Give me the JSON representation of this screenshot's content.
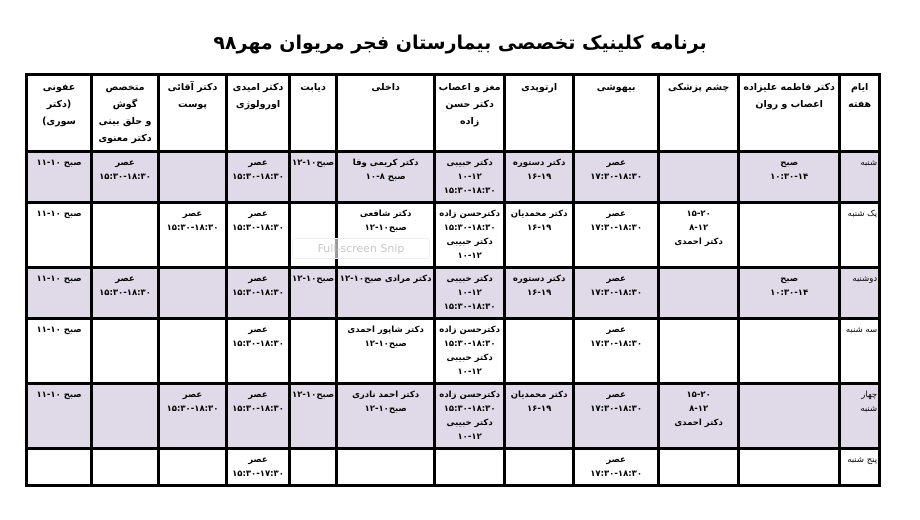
{
  "title": "برنامه کلینیک تخصصی بیمارستان فجر مریوان مهر۹۸",
  "overlay_text": "Full-screen Snip",
  "colors": {
    "shaded_row": "#e0dae8",
    "border": "#000000"
  },
  "columns": [
    [
      "ایام هفته"
    ],
    [
      "دکتر فاطمه علیزاده",
      "اعصاب و روان"
    ],
    [
      "چشم پزشکی"
    ],
    [
      "بیهوشی"
    ],
    [
      "ارتوپدی"
    ],
    [
      "مغز و اعصاب",
      "دکتر حسن زاده"
    ],
    [
      "داخلی"
    ],
    [
      "دیابت"
    ],
    [
      "دکتر امیدی",
      "اورولوژی"
    ],
    [
      "دکتر آقائی",
      "پوست"
    ],
    [
      "متخصص گوش",
      "و حلق بینی",
      "دکتر معنوی"
    ],
    [
      "عفونی",
      "(دکتر سوری)"
    ]
  ],
  "rows": [
    {
      "day": "شنبه",
      "shaded": true,
      "cells": [
        [
          "صبح",
          "۱۰:۳۰-۱۴"
        ],
        [],
        [
          "عصر",
          "۱۷:۳۰-۱۸:۳۰"
        ],
        [
          "دکتر دستوره",
          "۱۶-۱۹"
        ],
        [
          "دکتر حبیبی",
          "۱۰-۱۲",
          "۱۵:۳۰-۱۸:۳۰"
        ],
        [
          "دکتر کریمی وفا",
          "صبح ۸-۱۰"
        ],
        [
          "صبح۱۰-۱۲"
        ],
        [
          "عصر",
          "۱۵:۳۰-۱۸:۳۰"
        ],
        [],
        [
          "عصر",
          "۱۵:۳۰-۱۸:۳۰"
        ],
        [
          "صبح ۱۰-۱۱"
        ]
      ]
    },
    {
      "day": "یک شنبه",
      "shaded": false,
      "cells": [
        [],
        [
          "۱۵-۲۰",
          "۸-۱۲",
          "دکتر احمدی"
        ],
        [
          "عصر",
          "۱۷:۳۰-۱۸:۳۰"
        ],
        [
          "دکتر محمدیان",
          "۱۶-۱۹"
        ],
        [
          "دکترحسن زاده",
          "۱۵:۳۰-۱۸:۳۰",
          "دکتر حبیبی",
          "۱۰-۱۲"
        ],
        [
          "دکتر شافعی",
          "صبح۱۰-۱۲"
        ],
        [],
        [
          "عصر",
          "۱۵:۳۰-۱۸:۳۰"
        ],
        [
          "عصر",
          "۱۵:۳۰-۱۸:۳۰"
        ],
        [],
        [
          "صبح ۱۰-۱۱"
        ]
      ]
    },
    {
      "day": "دوشنبه",
      "shaded": true,
      "cells": [
        [
          "صبح",
          "۱۰:۳۰-۱۴"
        ],
        [],
        [
          "عصر",
          "۱۷:۳۰-۱۸:۳۰"
        ],
        [
          "دکتر دستوره",
          "۱۶-۱۹"
        ],
        [
          "دکتر حبیبی",
          "۱۰-۱۲",
          "۱۵:۳۰-۱۸:۳۰"
        ],
        [
          "دکتر مرادی صبح۱۰-۱۲"
        ],
        [
          "صبح۱۰-۱۲"
        ],
        [
          "عصر",
          "۱۵:۳۰-۱۸:۳۰"
        ],
        [],
        [
          "عصر",
          "۱۵:۳۰-۱۸:۳۰"
        ],
        [
          "صبح ۱۰-۱۱"
        ]
      ]
    },
    {
      "day": "سه شنبه",
      "shaded": false,
      "cells": [
        [],
        [],
        [
          "عصر",
          "۱۷:۳۰-۱۸:۳۰"
        ],
        [],
        [
          "دکترحسن زاده",
          "۱۵:۳۰-۱۸:۳۰",
          "دکتر حبیبی",
          "۱۰-۱۲"
        ],
        [
          "دکتر شاپور احمدی",
          "صبح۱۰-۱۲"
        ],
        [],
        [
          "عصر",
          "۱۵:۳۰-۱۸:۳۰"
        ],
        [],
        [],
        [
          "صبح ۱۰-۱۱"
        ]
      ]
    },
    {
      "day": "چهار شنبه",
      "shaded": true,
      "cells": [
        [],
        [
          "۱۵-۲۰",
          "۸-۱۲",
          "دکتر احمدی"
        ],
        [
          "عصر",
          "۱۷:۳۰-۱۸:۳۰"
        ],
        [
          "دکتر محمدیان",
          "۱۶-۱۹"
        ],
        [
          "دکترحسن زاده",
          "۱۵:۳۰-۱۸:۳۰",
          "دکتر حبیبی",
          "۱۰-۱۲"
        ],
        [
          "دکتر احمد نادری",
          "صبح۱۰-۱۲"
        ],
        [
          "صبح۱۰-۱۲"
        ],
        [
          "عصر",
          "۱۵:۳۰-۱۸:۳۰"
        ],
        [
          "عصر",
          "۱۵:۳۰-۱۸:۳۰"
        ],
        [],
        [
          "صبح ۱۰-۱۱"
        ]
      ]
    },
    {
      "day": "پنج شنبه",
      "shaded": false,
      "cells": [
        [],
        [],
        [
          "عصر",
          "۱۷:۳۰-۱۸:۳۰"
        ],
        [],
        [],
        [],
        [],
        [
          "عصر",
          "۱۵:۳۰-۱۷:۳۰"
        ],
        [],
        [],
        []
      ]
    }
  ]
}
